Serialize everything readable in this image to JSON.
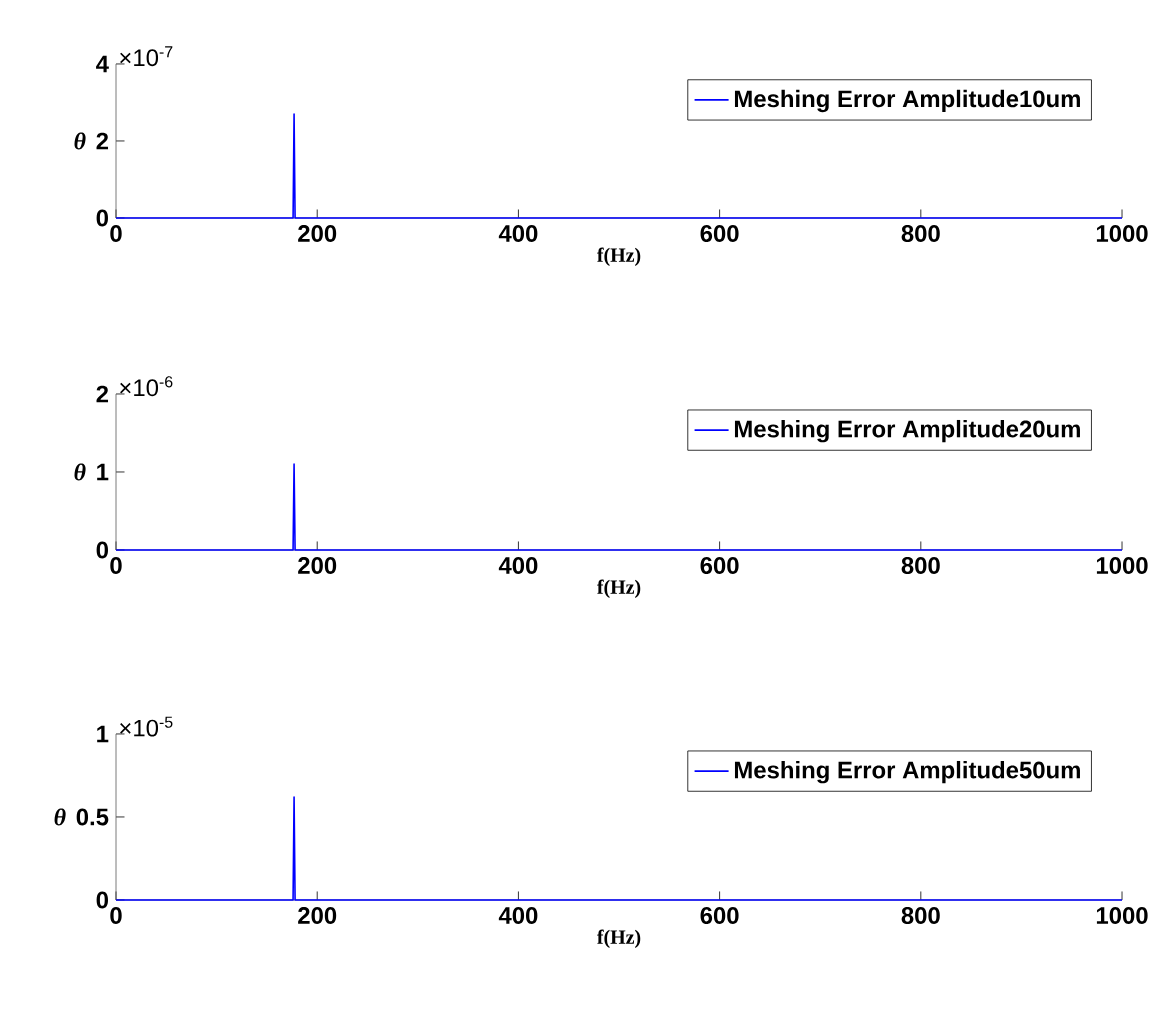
{
  "chart_data": [
    {
      "type": "line",
      "xlabel": "f(Hz)",
      "ylabel": "θ",
      "annotations": [
        "×10$^{-7}$"
      ],
      "legend": "top right",
      "grid": false,
      "xlim": [
        0,
        1000
      ],
      "xticks": [
        0,
        200,
        400,
        600,
        800,
        1000
      ],
      "ylim": [
        0,
        4
      ],
      "yticks": [
        0,
        2,
        4
      ],
      "series": [
        {
          "name": "Meshing Error Amplitude10um",
          "color": "#0000ff",
          "x": [
            0,
            176,
            177,
            178,
            1000
          ],
          "values": [
            0,
            0,
            2.7,
            0,
            0
          ]
        }
      ]
    },
    {
      "type": "line",
      "xlabel": "f(Hz)",
      "ylabel": "θ",
      "annotations": [
        "×10$^{-6}$"
      ],
      "legend": "top right",
      "grid": false,
      "xlim": [
        0,
        1000
      ],
      "xticks": [
        0,
        200,
        400,
        600,
        800,
        1000
      ],
      "ylim": [
        0,
        2
      ],
      "yticks": [
        0,
        1,
        2
      ],
      "series": [
        {
          "name": "Meshing Error Amplitude20um",
          "color": "#0000ff",
          "x": [
            0,
            176,
            177,
            178,
            1000
          ],
          "values": [
            0,
            0,
            1.1,
            0,
            0
          ]
        }
      ]
    },
    {
      "type": "line",
      "xlabel": "f(Hz)",
      "ylabel": "θ",
      "annotations": [
        "×10$^{-5}$"
      ],
      "legend": "top right",
      "grid": false,
      "xlim": [
        0,
        1000
      ],
      "xticks": [
        0,
        200,
        400,
        600,
        800,
        1000
      ],
      "ylim": [
        0,
        1
      ],
      "yticks": [
        0,
        0.5,
        1
      ],
      "series": [
        {
          "name": "Meshing Error Amplitude50um",
          "color": "#0000ff",
          "x": [
            0,
            176,
            177,
            178,
            1000
          ],
          "values": [
            0,
            0,
            0.62,
            0,
            0
          ]
        }
      ]
    }
  ]
}
